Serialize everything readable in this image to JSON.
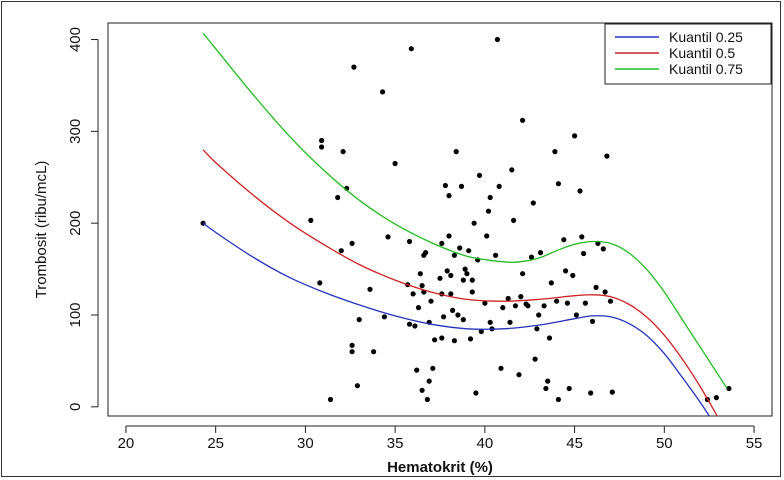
{
  "chart_data": {
    "type": "scatter",
    "title": "",
    "xlabel": "Hematokrit (%)",
    "ylabel": "Trombosit (ribu/mcL)",
    "xlim": [
      19,
      56
    ],
    "ylim": [
      -10,
      418
    ],
    "xticks": [
      20,
      25,
      30,
      35,
      40,
      45,
      50,
      55
    ],
    "yticks": [
      0,
      100,
      200,
      300,
      400
    ],
    "grid": false,
    "legend_position": "top-right",
    "points": [
      [
        24.3,
        200
      ],
      [
        30.3,
        203
      ],
      [
        30.8,
        135
      ],
      [
        30.9,
        290
      ],
      [
        30.9,
        283
      ],
      [
        31.4,
        8
      ],
      [
        31.8,
        228
      ],
      [
        32.0,
        170
      ],
      [
        32.1,
        278
      ],
      [
        32.3,
        238
      ],
      [
        32.6,
        60
      ],
      [
        32.6,
        67
      ],
      [
        32.6,
        178
      ],
      [
        32.7,
        370
      ],
      [
        32.9,
        23
      ],
      [
        33.0,
        95
      ],
      [
        33.6,
        128
      ],
      [
        33.8,
        60
      ],
      [
        34.3,
        343
      ],
      [
        34.4,
        98
      ],
      [
        34.6,
        185
      ],
      [
        35.0,
        265
      ],
      [
        35.7,
        133
      ],
      [
        35.8,
        180
      ],
      [
        35.8,
        90
      ],
      [
        35.9,
        390
      ],
      [
        36.0,
        123
      ],
      [
        36.1,
        88
      ],
      [
        36.2,
        40
      ],
      [
        36.3,
        108
      ],
      [
        36.4,
        145
      ],
      [
        36.5,
        18
      ],
      [
        36.5,
        132
      ],
      [
        36.6,
        165
      ],
      [
        36.6,
        125
      ],
      [
        36.7,
        168
      ],
      [
        36.8,
        8
      ],
      [
        36.9,
        28
      ],
      [
        36.9,
        92
      ],
      [
        37.0,
        115
      ],
      [
        37.1,
        42
      ],
      [
        37.2,
        73
      ],
      [
        37.5,
        140
      ],
      [
        37.6,
        178
      ],
      [
        37.6,
        123
      ],
      [
        37.6,
        75
      ],
      [
        37.7,
        98
      ],
      [
        37.8,
        241
      ],
      [
        37.9,
        148
      ],
      [
        38.0,
        186
      ],
      [
        38.0,
        230
      ],
      [
        38.1,
        143
      ],
      [
        38.1,
        123
      ],
      [
        38.2,
        105
      ],
      [
        38.3,
        165
      ],
      [
        38.3,
        72
      ],
      [
        38.4,
        278
      ],
      [
        38.5,
        100
      ],
      [
        38.6,
        173
      ],
      [
        38.7,
        240
      ],
      [
        38.8,
        138
      ],
      [
        38.8,
        95
      ],
      [
        38.9,
        150
      ],
      [
        39.0,
        145
      ],
      [
        39.1,
        170
      ],
      [
        39.2,
        74
      ],
      [
        39.3,
        125
      ],
      [
        39.3,
        138
      ],
      [
        39.4,
        200
      ],
      [
        39.5,
        15
      ],
      [
        39.6,
        160
      ],
      [
        39.7,
        252
      ],
      [
        39.8,
        82
      ],
      [
        40.0,
        113
      ],
      [
        40.1,
        186
      ],
      [
        40.2,
        213
      ],
      [
        40.3,
        228
      ],
      [
        40.3,
        92
      ],
      [
        40.4,
        85
      ],
      [
        40.6,
        165
      ],
      [
        40.7,
        400
      ],
      [
        40.8,
        240
      ],
      [
        40.9,
        42
      ],
      [
        41.0,
        108
      ],
      [
        41.3,
        118
      ],
      [
        41.4,
        92
      ],
      [
        41.5,
        258
      ],
      [
        41.6,
        203
      ],
      [
        41.7,
        110
      ],
      [
        41.9,
        35
      ],
      [
        42.0,
        120
      ],
      [
        42.1,
        145
      ],
      [
        42.1,
        312
      ],
      [
        42.3,
        112
      ],
      [
        42.4,
        110
      ],
      [
        42.6,
        163
      ],
      [
        42.7,
        222
      ],
      [
        42.8,
        52
      ],
      [
        42.9,
        85
      ],
      [
        43.0,
        100
      ],
      [
        43.1,
        168
      ],
      [
        43.3,
        110
      ],
      [
        43.4,
        20
      ],
      [
        43.5,
        28
      ],
      [
        43.6,
        75
      ],
      [
        43.7,
        135
      ],
      [
        43.9,
        278
      ],
      [
        44.0,
        115
      ],
      [
        44.1,
        243
      ],
      [
        44.1,
        8
      ],
      [
        44.4,
        182
      ],
      [
        44.5,
        148
      ],
      [
        44.6,
        113
      ],
      [
        44.7,
        20
      ],
      [
        44.9,
        143
      ],
      [
        45.0,
        295
      ],
      [
        45.1,
        100
      ],
      [
        45.3,
        235
      ],
      [
        45.4,
        185
      ],
      [
        45.5,
        167
      ],
      [
        45.6,
        113
      ],
      [
        45.9,
        15
      ],
      [
        46.0,
        93
      ],
      [
        46.2,
        130
      ],
      [
        46.3,
        178
      ],
      [
        46.6,
        172
      ],
      [
        46.7,
        125
      ],
      [
        46.8,
        273
      ],
      [
        47.0,
        115
      ],
      [
        47.1,
        16
      ],
      [
        52.4,
        8
      ],
      [
        52.9,
        10
      ],
      [
        53.6,
        20
      ]
    ],
    "series": [
      {
        "name": "Kuantil 0.25",
        "color": "#2233bb",
        "x": [
          24.3,
          25,
          27,
          29,
          31,
          33,
          35,
          37,
          39,
          41,
          43,
          45,
          46,
          47,
          48,
          49,
          50,
          51,
          52,
          53
        ],
        "y": [
          200,
          190,
          164,
          142,
          125,
          111,
          99,
          90,
          85,
          85,
          89,
          96,
          99,
          98,
          91,
          78,
          58,
          32,
          5,
          -25
        ]
      },
      {
        "name": "Kuantil 0.5",
        "color": "#cc2222",
        "x": [
          24.3,
          25,
          27,
          29,
          31,
          33,
          35,
          37,
          39,
          41,
          43,
          45,
          46,
          47,
          48,
          49,
          50,
          51,
          52,
          53
        ],
        "y": [
          280,
          266,
          232,
          202,
          177,
          155,
          138,
          125,
          117,
          115,
          117,
          121,
          122,
          120,
          112,
          98,
          78,
          52,
          22,
          -12
        ]
      },
      {
        "name": "Kuantil 0.75",
        "color": "#22bb22",
        "x": [
          24.3,
          25,
          27,
          29,
          31,
          33,
          35,
          37,
          39,
          41,
          42,
          43,
          44,
          45,
          46,
          47,
          48,
          49,
          50,
          51,
          52,
          53,
          53.5
        ],
        "y": [
          407,
          390,
          342,
          297,
          258,
          225,
          199,
          179,
          164,
          158,
          158,
          162,
          170,
          177,
          180,
          178,
          168,
          150,
          125,
          95,
          65,
          35,
          20
        ]
      }
    ]
  }
}
